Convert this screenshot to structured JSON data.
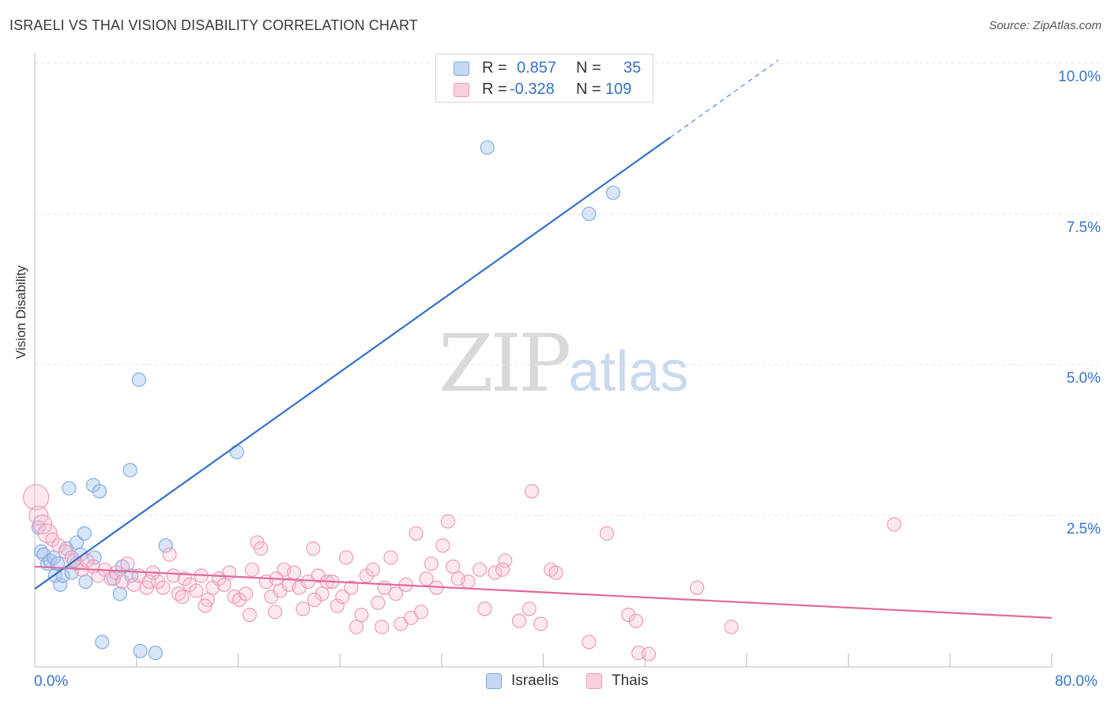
{
  "title": "ISRAELI VS THAI VISION DISABILITY CORRELATION CHART",
  "source": "Source: ZipAtlas.com",
  "watermark": {
    "zip": "ZIP",
    "atlas": "atlas"
  },
  "legend": {
    "rows": [
      {
        "r_label": "R =",
        "r_value": "0.857",
        "n_label": "N =",
        "n_value": "35",
        "color": "#a9c6ef"
      },
      {
        "r_label": "R =",
        "r_value": "-0.328",
        "n_label": "N =",
        "n_value": "109",
        "color": "#f5b6cb"
      }
    ]
  },
  "bottom_legend": [
    {
      "label": "Israelis",
      "color": "#a9c6ef"
    },
    {
      "label": "Thais",
      "color": "#f5b6cb"
    }
  ],
  "chart_data": {
    "type": "scatter",
    "title": "ISRAELI VS THAI VISION DISABILITY CORRELATION CHART",
    "xlabel": "",
    "ylabel": "Vision Disability",
    "xlim": [
      0,
      80
    ],
    "ylim": [
      0,
      10.5
    ],
    "x_tick_labels": [
      "0.0%",
      "80.0%"
    ],
    "y_ticks": [
      2.5,
      5.0,
      7.5,
      10.0
    ],
    "y_tick_labels": [
      "2.5%",
      "5.0%",
      "7.5%",
      "10.0%"
    ],
    "grid": "horizontal dashed",
    "legend_position": "top-center",
    "colors": {
      "israelis": "#3470c9",
      "thais": "#e0699a"
    },
    "series": [
      {
        "name": "Israelis",
        "trend": {
          "x": [
            0,
            50
          ],
          "y": [
            1.28,
            8.77
          ],
          "dashed_to": [
            58.5,
            10.05
          ]
        },
        "points": [
          [
            0.3,
            2.3
          ],
          [
            0.5,
            1.9
          ],
          [
            0.7,
            1.85
          ],
          [
            1.0,
            1.7
          ],
          [
            1.2,
            1.75
          ],
          [
            1.5,
            1.8
          ],
          [
            1.6,
            1.5
          ],
          [
            1.8,
            1.7
          ],
          [
            2.0,
            1.35
          ],
          [
            2.2,
            1.5
          ],
          [
            2.5,
            1.95
          ],
          [
            2.7,
            2.95
          ],
          [
            2.9,
            1.55
          ],
          [
            3.1,
            1.75
          ],
          [
            3.3,
            2.05
          ],
          [
            3.6,
            1.85
          ],
          [
            3.9,
            2.2
          ],
          [
            4.0,
            1.4
          ],
          [
            4.7,
            1.8
          ],
          [
            4.6,
            3.0
          ],
          [
            5.1,
            2.9
          ],
          [
            5.3,
            0.4
          ],
          [
            6.2,
            1.45
          ],
          [
            6.7,
            1.2
          ],
          [
            6.9,
            1.65
          ],
          [
            7.5,
            3.25
          ],
          [
            7.6,
            1.5
          ],
          [
            8.2,
            4.75
          ],
          [
            8.3,
            0.25
          ],
          [
            9.5,
            0.22
          ],
          [
            10.3,
            2.0
          ],
          [
            15.9,
            3.55
          ],
          [
            35.6,
            8.6
          ],
          [
            43.6,
            7.5
          ],
          [
            45.5,
            7.85
          ]
        ]
      },
      {
        "name": "Thais",
        "trend": {
          "x": [
            0,
            80
          ],
          "y": [
            1.65,
            0.8
          ]
        },
        "points": [
          [
            0.1,
            2.8
          ],
          [
            0.3,
            2.5
          ],
          [
            0.6,
            2.35
          ],
          [
            1.0,
            2.2
          ],
          [
            1.4,
            2.1
          ],
          [
            1.9,
            2.0
          ],
          [
            2.4,
            1.9
          ],
          [
            2.9,
            1.8
          ],
          [
            3.3,
            1.7
          ],
          [
            3.7,
            1.6
          ],
          [
            4.1,
            1.75
          ],
          [
            4.6,
            1.65
          ],
          [
            5.0,
            1.5
          ],
          [
            5.5,
            1.6
          ],
          [
            6.0,
            1.45
          ],
          [
            6.4,
            1.55
          ],
          [
            6.9,
            1.4
          ],
          [
            7.3,
            1.7
          ],
          [
            7.8,
            1.35
          ],
          [
            8.2,
            1.5
          ],
          [
            8.8,
            1.3
          ],
          [
            9.3,
            1.55
          ],
          [
            9.7,
            1.4
          ],
          [
            10.1,
            1.3
          ],
          [
            10.6,
            1.85
          ],
          [
            10.9,
            1.5
          ],
          [
            11.3,
            1.2
          ],
          [
            11.8,
            1.45
          ],
          [
            12.2,
            1.35
          ],
          [
            12.7,
            1.25
          ],
          [
            13.1,
            1.5
          ],
          [
            13.6,
            1.1
          ],
          [
            14.0,
            1.3
          ],
          [
            14.5,
            1.45
          ],
          [
            14.9,
            1.35
          ],
          [
            15.3,
            1.55
          ],
          [
            15.7,
            1.15
          ],
          [
            16.1,
            1.1
          ],
          [
            16.6,
            1.2
          ],
          [
            17.1,
            1.6
          ],
          [
            17.5,
            2.05
          ],
          [
            17.8,
            1.95
          ],
          [
            18.2,
            1.4
          ],
          [
            18.6,
            1.15
          ],
          [
            18.9,
            0.9
          ],
          [
            19.3,
            1.25
          ],
          [
            19.6,
            1.6
          ],
          [
            20.0,
            1.35
          ],
          [
            20.4,
            1.55
          ],
          [
            20.8,
            1.3
          ],
          [
            21.1,
            0.95
          ],
          [
            21.5,
            1.4
          ],
          [
            21.9,
            1.95
          ],
          [
            22.3,
            1.5
          ],
          [
            22.6,
            1.2
          ],
          [
            23.0,
            1.4
          ],
          [
            23.4,
            1.4
          ],
          [
            23.8,
            1.0
          ],
          [
            24.2,
            1.15
          ],
          [
            24.5,
            1.8
          ],
          [
            24.9,
            1.3
          ],
          [
            25.3,
            0.65
          ],
          [
            25.7,
            0.85
          ],
          [
            26.1,
            1.5
          ],
          [
            26.6,
            1.6
          ],
          [
            27.0,
            1.05
          ],
          [
            27.5,
            1.3
          ],
          [
            28.0,
            1.8
          ],
          [
            28.4,
            1.2
          ],
          [
            28.8,
            0.7
          ],
          [
            29.2,
            1.35
          ],
          [
            29.6,
            0.8
          ],
          [
            30.0,
            2.2
          ],
          [
            30.4,
            0.9
          ],
          [
            30.8,
            1.45
          ],
          [
            31.2,
            1.7
          ],
          [
            31.6,
            1.3
          ],
          [
            32.1,
            2.0
          ],
          [
            32.5,
            2.4
          ],
          [
            32.9,
            1.65
          ],
          [
            35.4,
            0.95
          ],
          [
            36.2,
            1.55
          ],
          [
            37.0,
            1.75
          ],
          [
            36.8,
            1.6
          ],
          [
            38.1,
            0.75
          ],
          [
            38.9,
            0.95
          ],
          [
            39.8,
            0.7
          ],
          [
            40.6,
            1.6
          ],
          [
            41.0,
            1.55
          ],
          [
            43.6,
            0.4
          ],
          [
            45.0,
            2.2
          ],
          [
            46.7,
            0.85
          ],
          [
            47.3,
            0.75
          ],
          [
            47.5,
            0.22
          ],
          [
            48.3,
            0.2
          ],
          [
            52.1,
            1.3
          ],
          [
            54.8,
            0.65
          ],
          [
            67.6,
            2.35
          ],
          [
            35.0,
            1.6
          ],
          [
            34.1,
            1.4
          ],
          [
            19.0,
            1.45
          ],
          [
            13.4,
            1.0
          ],
          [
            9.0,
            1.4
          ],
          [
            11.6,
            1.15
          ],
          [
            16.9,
            0.85
          ],
          [
            22.0,
            1.1
          ],
          [
            27.3,
            0.65
          ],
          [
            33.3,
            1.45
          ],
          [
            39.1,
            2.9
          ]
        ]
      }
    ]
  }
}
